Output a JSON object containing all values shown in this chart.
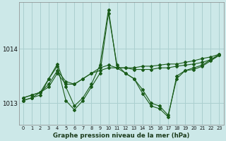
{
  "xlabel": "Graphe pression niveau de la mer (hPa)",
  "background_color": "#cce8e8",
  "grid_color": "#aacfcf",
  "line_color": "#1a5c1a",
  "xlim": [
    -0.5,
    23.5
  ],
  "ylim": [
    1012.6,
    1014.85
  ],
  "yticks": [
    1013,
    1014
  ],
  "xticks": [
    0,
    1,
    2,
    3,
    4,
    5,
    6,
    7,
    8,
    9,
    10,
    11,
    12,
    13,
    14,
    15,
    16,
    17,
    18,
    19,
    20,
    21,
    22,
    23
  ],
  "series": [
    [
      1013.1,
      1013.15,
      1013.2,
      1013.3,
      1013.55,
      1013.35,
      1013.35,
      1013.45,
      1013.55,
      1013.6,
      1013.65,
      1013.65,
      1013.65,
      1013.65,
      1013.68,
      1013.68,
      1013.7,
      1013.72,
      1013.72,
      1013.75,
      1013.78,
      1013.82,
      1013.85,
      1013.9
    ],
    [
      1013.1,
      1013.15,
      1013.2,
      1013.35,
      1013.6,
      1013.4,
      1013.35,
      1013.45,
      1013.55,
      1013.65,
      1013.7,
      1013.65,
      1013.65,
      1013.62,
      1013.62,
      1013.62,
      1013.65,
      1013.65,
      1013.68,
      1013.7,
      1013.72,
      1013.75,
      1013.8,
      1013.88
    ],
    [
      1013.05,
      1013.1,
      1013.15,
      1013.45,
      1013.72,
      1013.3,
      1012.95,
      1013.1,
      1013.35,
      1013.7,
      1014.72,
      1013.65,
      1013.55,
      1013.45,
      1013.25,
      1013.0,
      1012.95,
      1012.78,
      1013.45,
      1013.6,
      1013.65,
      1013.7,
      1013.8,
      1013.9
    ],
    [
      1013.05,
      1013.1,
      1013.2,
      1013.45,
      1013.68,
      1013.05,
      1012.88,
      1013.05,
      1013.3,
      1013.55,
      1014.65,
      1013.7,
      1013.55,
      1013.45,
      1013.18,
      1012.95,
      1012.9,
      1012.75,
      1013.5,
      1013.6,
      1013.62,
      1013.68,
      1013.78,
      1013.88
    ]
  ]
}
